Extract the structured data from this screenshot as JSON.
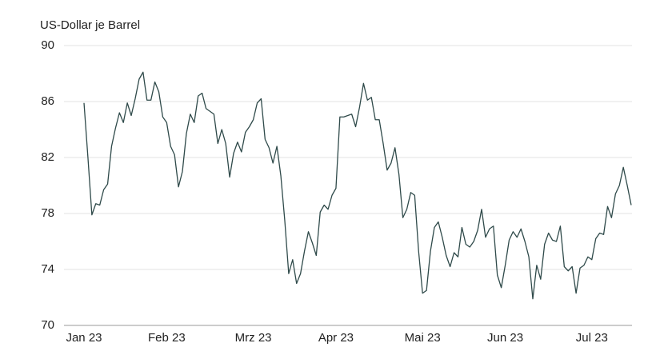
{
  "chart_data": {
    "type": "line",
    "y_axis_label": "US-Dollar je Barrel",
    "categories": [
      "Jan 23",
      null,
      null,
      null,
      null,
      null,
      null,
      null,
      null,
      null,
      null,
      null,
      null,
      null,
      null,
      null,
      null,
      null,
      null,
      null,
      null,
      "Feb 23",
      null,
      null,
      null,
      null,
      null,
      null,
      null,
      null,
      null,
      null,
      null,
      null,
      null,
      null,
      null,
      null,
      null,
      null,
      null,
      null,
      null,
      "Mrz 23",
      null,
      null,
      null,
      null,
      null,
      null,
      null,
      null,
      null,
      null,
      null,
      null,
      null,
      null,
      null,
      null,
      null,
      null,
      null,
      null,
      "Apr 23",
      null,
      null,
      null,
      null,
      null,
      null,
      null,
      null,
      null,
      null,
      null,
      null,
      null,
      null,
      null,
      null,
      null,
      null,
      null,
      null,
      null,
      "Mai 23",
      null,
      null,
      null,
      null,
      null,
      null,
      null,
      null,
      null,
      null,
      null,
      null,
      null,
      null,
      null,
      null,
      null,
      null,
      null,
      null,
      "Jun 23",
      null,
      null,
      null,
      null,
      null,
      null,
      null,
      null,
      null,
      null,
      null,
      null,
      null,
      null,
      null,
      null,
      null,
      null,
      null,
      null,
      null,
      "Jul 23",
      null,
      null,
      null,
      null,
      null,
      null,
      null,
      null,
      null,
      null
    ],
    "values": [
      85.9,
      82,
      77.9,
      78.7,
      78.6,
      79.7,
      80.1,
      82.8,
      84.1,
      85.2,
      84.5,
      85.9,
      85.0,
      86.2,
      87.6,
      88.1,
      86.1,
      86.1,
      87.4,
      86.7,
      84.9,
      84.5,
      82.8,
      82.2,
      79.9,
      81.0,
      83.7,
      85.1,
      84.5,
      86.4,
      86.6,
      85.5,
      85.3,
      85.1,
      83.0,
      84.0,
      83.0,
      80.6,
      82.3,
      83.1,
      82.4,
      83.8,
      84.2,
      84.7,
      85.9,
      86.2,
      83.3,
      82.7,
      81.6,
      82.8,
      80.7,
      77.5,
      73.7,
      74.7,
      73.0,
      73.7,
      75.3,
      76.7,
      75.9,
      75.0,
      78.1,
      78.6,
      78.3,
      79.3,
      79.8,
      84.9,
      84.9,
      85.0,
      85.1,
      84.2,
      85.6,
      87.3,
      86.1,
      86.3,
      84.7,
      84.7,
      83.0,
      81.1,
      81.6,
      82.7,
      80.8,
      77.7,
      78.3,
      79.5,
      79.3,
      75.3,
      72.3,
      72.5,
      75.3,
      77.0,
      77.4,
      76.3,
      75.0,
      74.2,
      75.2,
      74.9,
      77.0,
      75.8,
      75.6,
      76.0,
      76.8,
      78.3,
      76.3,
      76.9,
      77.1,
      73.6,
      72.7,
      74.3,
      76.1,
      76.7,
      76.3,
      76.9,
      76.0,
      74.9,
      71.9,
      74.3,
      73.3,
      75.8,
      76.6,
      76.1,
      76.0,
      77.1,
      74.2,
      73.9,
      74.2,
      72.3,
      74.1,
      74.3,
      74.9,
      74.7,
      76.2,
      76.6,
      76.5,
      78.5,
      77.7,
      79.4,
      80.0,
      81.3,
      80.0,
      78.6
    ],
    "color": "#2f4a4a",
    "ylim": [
      70,
      90
    ],
    "yticks": [
      70,
      74,
      78,
      82,
      86,
      90
    ],
    "grid": true
  }
}
